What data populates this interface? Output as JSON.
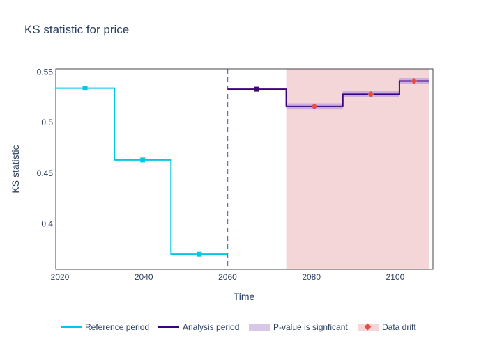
{
  "title": "KS statistic for price",
  "chart_data": {
    "type": "line",
    "title": "KS statistic for price",
    "xlabel": "Time",
    "ylabel": "KS statistic",
    "xlim": [
      2019,
      2109
    ],
    "ylim": [
      0.355,
      0.553
    ],
    "x_ticks": [
      2020,
      2040,
      2060,
      2080,
      2100
    ],
    "y_ticks": [
      0.4,
      0.45,
      0.5,
      0.55
    ],
    "y_tick_labels": [
      "0.4",
      "0.45",
      "0.5",
      "0.55"
    ],
    "reference_end": 2060,
    "series": [
      {
        "name": "Reference period",
        "color": "#00c8e5",
        "segments": [
          {
            "start": 2019,
            "end": 2033,
            "value": 0.534
          },
          {
            "start": 2033,
            "end": 2046.5,
            "value": 0.463
          },
          {
            "start": 2046.5,
            "end": 2060,
            "value": 0.37
          }
        ]
      },
      {
        "name": "Analysis period",
        "color": "#3b0280",
        "segments": [
          {
            "start": 2060,
            "end": 2074,
            "value": 0.533
          },
          {
            "start": 2074,
            "end": 2087.5,
            "value": 0.516
          },
          {
            "start": 2087.5,
            "end": 2101,
            "value": 0.528
          },
          {
            "start": 2101,
            "end": 2108,
            "value": 0.541
          }
        ],
        "band": [
          {
            "start": 2074,
            "end": 2087.5,
            "lower": 0.513,
            "upper": 0.519
          },
          {
            "start": 2087.5,
            "end": 2101,
            "lower": 0.525,
            "upper": 0.531
          },
          {
            "start": 2101,
            "end": 2108,
            "lower": 0.538,
            "upper": 0.544
          }
        ],
        "band_color": "#c3a8dc"
      }
    ],
    "drift_region": {
      "start": 2074,
      "end": 2108,
      "color": "#f5d6d8"
    },
    "drift_points": [
      {
        "x": 2080.7,
        "y": 0.516
      },
      {
        "x": 2094.2,
        "y": 0.528
      },
      {
        "x": 2104.5,
        "y": 0.541
      }
    ],
    "drift_color": "#e74c3c",
    "legend_placement": "bottom",
    "legend": [
      {
        "label": "Reference period",
        "kind": "line",
        "color": "#00c8e5"
      },
      {
        "label": "Analysis period",
        "kind": "line",
        "color": "#3b0280"
      },
      {
        "label": "P-value is signficant",
        "kind": "fill",
        "color": "#d8c8e6"
      },
      {
        "label": "Data drift",
        "kind": "marker",
        "color": "#e74c3c",
        "bg": "#f5d6d8"
      }
    ]
  }
}
